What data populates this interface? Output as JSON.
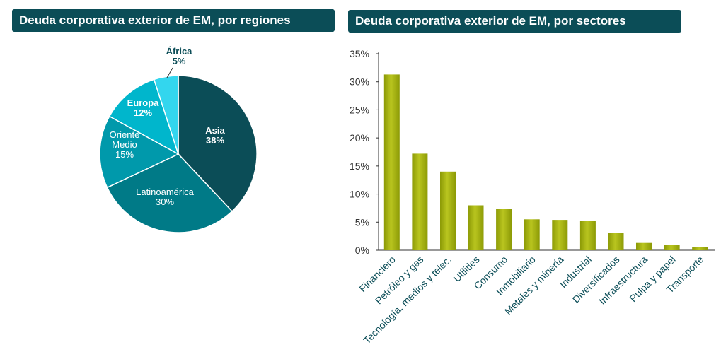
{
  "chart_data": [
    {
      "type": "pie",
      "title": "Deuda corporativa exterior de EM, por regiones",
      "slices": [
        {
          "label": "Asia",
          "value": 38,
          "value_label": "38%",
          "color": "#0b4d57",
          "label_color": "#ffffff",
          "bold": true
        },
        {
          "label": "Latinoamérica",
          "value": 30,
          "value_label": "30%",
          "color": "#007a87",
          "label_color": "#ffffff",
          "bold": false
        },
        {
          "label": "Oriente Medio",
          "label_lines": [
            "Oriente",
            "Medio"
          ],
          "value": 15,
          "value_label": "15%",
          "color": "#0099ab",
          "label_color": "#ffffff",
          "bold": false
        },
        {
          "label": "Europa",
          "value": 12,
          "value_label": "12%",
          "color": "#00b6cc",
          "label_color": "#ffffff",
          "bold": true
        },
        {
          "label": "África",
          "value": 5,
          "value_label": "5%",
          "color": "#33d6ee",
          "label_color": "#0b4d57",
          "bold": true
        }
      ]
    },
    {
      "type": "bar",
      "title": "Deuda corporativa exterior de EM, por sectores",
      "categories": [
        "Financiero",
        "Petróleo y gas",
        "Tecnología, medios y telec.",
        "Utilities",
        "Consumo",
        "Inmobiliario",
        "Metales y minería",
        "Industrial",
        "Diversificados",
        "Infraestructura",
        "Pulpa y papel",
        "Transporte"
      ],
      "values": [
        31.3,
        17.2,
        14.0,
        8.0,
        7.3,
        5.5,
        5.4,
        5.2,
        3.1,
        1.3,
        1.0,
        0.6
      ],
      "ylim": [
        0,
        35
      ],
      "yticks": [
        "0%",
        "5%",
        "10%",
        "15%",
        "20%",
        "25%",
        "30%",
        "35%"
      ],
      "xlabel": "",
      "ylabel": "",
      "bar_color": "#9aa70a",
      "bar_color_light": "#b8c41e"
    }
  ]
}
